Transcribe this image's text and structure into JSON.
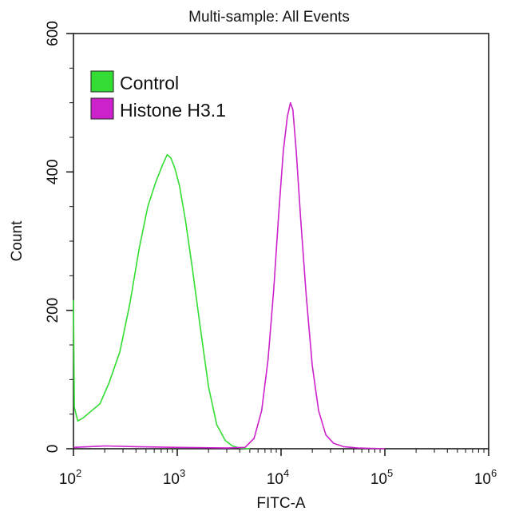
{
  "chart_data": {
    "type": "line",
    "title": "Multi-sample: All Events",
    "xlabel": "FITC-A",
    "ylabel": "Count",
    "xscale": "log",
    "xlim": [
      100,
      1000000
    ],
    "ylim": [
      0,
      600
    ],
    "yticks": [
      "0",
      "200",
      "400",
      "600"
    ],
    "xticks": [
      {
        "base": "10",
        "exp": "2"
      },
      {
        "base": "10",
        "exp": "3"
      },
      {
        "base": "10",
        "exp": "4"
      },
      {
        "base": "10",
        "exp": "5"
      },
      {
        "base": "10",
        "exp": "6"
      }
    ],
    "legend_position": "top-left",
    "series": [
      {
        "name": "Control",
        "color": "#33dd33",
        "points": [
          [
            100,
            215
          ],
          [
            102,
            60
          ],
          [
            110,
            40
          ],
          [
            125,
            45
          ],
          [
            150,
            55
          ],
          [
            180,
            65
          ],
          [
            220,
            95
          ],
          [
            280,
            140
          ],
          [
            350,
            210
          ],
          [
            430,
            290
          ],
          [
            520,
            350
          ],
          [
            620,
            385
          ],
          [
            720,
            410
          ],
          [
            800,
            425
          ],
          [
            870,
            420
          ],
          [
            950,
            405
          ],
          [
            1050,
            380
          ],
          [
            1200,
            330
          ],
          [
            1400,
            260
          ],
          [
            1650,
            180
          ],
          [
            2000,
            90
          ],
          [
            2400,
            35
          ],
          [
            2900,
            12
          ],
          [
            3400,
            4
          ],
          [
            4000,
            1
          ],
          [
            5000,
            0
          ]
        ]
      },
      {
        "name": "Histone H3.1",
        "color": "#cc22cc",
        "points": [
          [
            100,
            2
          ],
          [
            200,
            4
          ],
          [
            400,
            3
          ],
          [
            1000,
            2
          ],
          [
            3000,
            1
          ],
          [
            4500,
            2
          ],
          [
            5500,
            15
          ],
          [
            6500,
            55
          ],
          [
            7500,
            130
          ],
          [
            8500,
            230
          ],
          [
            9500,
            340
          ],
          [
            10500,
            430
          ],
          [
            11500,
            480
          ],
          [
            12300,
            500
          ],
          [
            13000,
            490
          ],
          [
            14000,
            430
          ],
          [
            15500,
            330
          ],
          [
            17500,
            220
          ],
          [
            20000,
            120
          ],
          [
            23000,
            55
          ],
          [
            27000,
            20
          ],
          [
            32000,
            8
          ],
          [
            40000,
            3
          ],
          [
            55000,
            1
          ],
          [
            100000,
            0
          ]
        ]
      }
    ]
  }
}
